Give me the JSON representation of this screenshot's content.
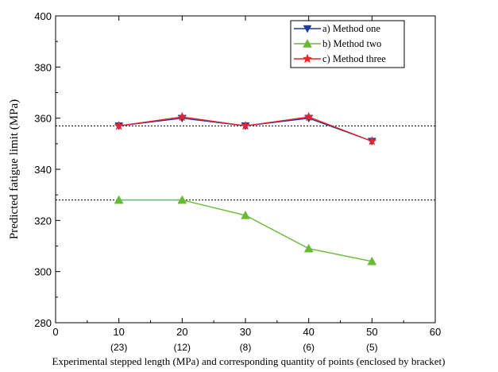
{
  "chart_data": {
    "type": "line",
    "xlabel": "Experimental stepped length (MPa) and corresponding quantity of points (enclosed by bracket)",
    "ylabel": "Predicted fatigue limit (MPa)",
    "xlim": [
      0,
      60
    ],
    "ylim": [
      280,
      400
    ],
    "x_ticks": [
      0,
      10,
      20,
      30,
      40,
      50,
      60
    ],
    "y_ticks": [
      280,
      300,
      320,
      340,
      360,
      380,
      400
    ],
    "x_tick_sublabels": [
      {
        "x": 10,
        "label": "(23)"
      },
      {
        "x": 20,
        "label": "(12)"
      },
      {
        "x": 30,
        "label": "(8)"
      },
      {
        "x": 40,
        "label": "(6)"
      },
      {
        "x": 50,
        "label": "(5)"
      }
    ],
    "x": [
      10,
      20,
      30,
      40,
      50
    ],
    "series": [
      {
        "name": "a) Method one",
        "values": [
          357,
          360,
          357,
          360,
          351
        ],
        "color": "#1f3d99",
        "marker": "triangle-down"
      },
      {
        "name": "b) Method two",
        "values": [
          328,
          328,
          322,
          309,
          304
        ],
        "color": "#66bb33",
        "marker": "triangle-up"
      },
      {
        "name": "c) Method three",
        "values": [
          357,
          360.5,
          357,
          360.5,
          351
        ],
        "color": "#e8252a",
        "marker": "star"
      }
    ],
    "reference_lines": [
      357,
      328
    ],
    "grid": false,
    "legend_position": "top-right"
  }
}
